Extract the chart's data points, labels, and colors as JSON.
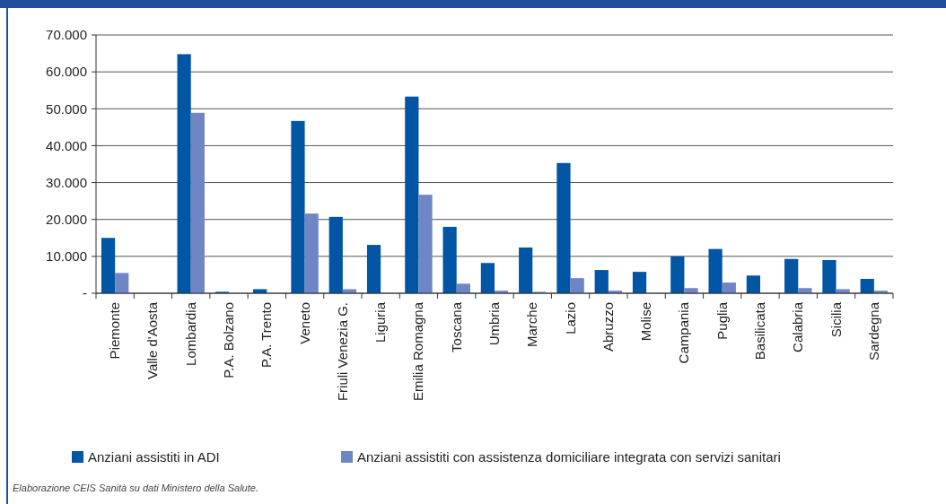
{
  "chart_data": {
    "type": "bar",
    "categories": [
      "Piemonte",
      "Valle d'Aosta",
      "Lombardia",
      "P.A. Bolzano",
      "P.A. Trento",
      "Veneto",
      "Friuli Venezia G.",
      "Liguria",
      "Emilia Romagna",
      "Toscana",
      "Umbria",
      "Marche",
      "Lazio",
      "Abruzzo",
      "Molise",
      "Campania",
      "Puglia",
      "Basilicata",
      "Calabria",
      "Sicilia",
      "Sardegna"
    ],
    "series": [
      {
        "name": "Anziani assistiti in ADI",
        "color": "#0055a5",
        "values": [
          15000,
          0,
          64800,
          400,
          1100,
          46700,
          20700,
          13100,
          53300,
          18000,
          8200,
          12400,
          35300,
          6300,
          5800,
          10000,
          12000,
          4800,
          9300,
          9000,
          3900
        ]
      },
      {
        "name": "Anziani assistiti con assistenza domiciliare integrata con servizi sanitari",
        "color": "#6e87c4",
        "values": [
          5500,
          0,
          48900,
          0,
          null,
          21600,
          1100,
          null,
          26700,
          2600,
          700,
          400,
          4100,
          700,
          null,
          1400,
          2900,
          null,
          1400,
          1100,
          700
        ]
      }
    ],
    "ylim": [
      0,
      70000
    ],
    "yticks": [
      {
        "value": 0,
        "label": "-"
      },
      {
        "value": 10000,
        "label": "10.000"
      },
      {
        "value": 20000,
        "label": "20.000"
      },
      {
        "value": 30000,
        "label": "30.000"
      },
      {
        "value": 40000,
        "label": "40.000"
      },
      {
        "value": 50000,
        "label": "50.000"
      },
      {
        "value": 60000,
        "label": "60.000"
      },
      {
        "value": 70000,
        "label": "70.000"
      }
    ],
    "grid": "y",
    "legend": "bottom",
    "annotations": [
      "Elaborazione CEIS Sanità su dati Ministero della Salute."
    ]
  }
}
